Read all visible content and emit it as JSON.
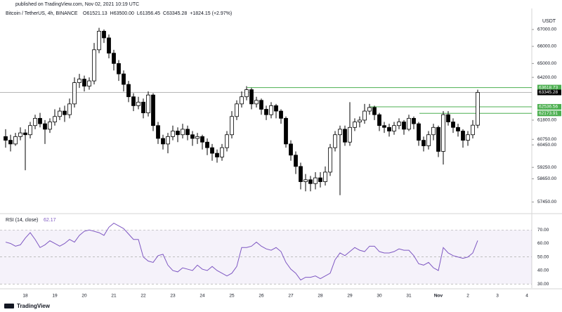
{
  "published": "published on TradingView.com, Nov 02, 2021 10:19 UTC",
  "brand": "TradingView",
  "chart_data": {
    "type": "candlestick",
    "title": "Bitcoin / TetherUS, 4h, BINANCE",
    "ohlc_header": [
      "O61521.13",
      "H63500.00",
      "L61356.45",
      "C63345.28",
      "+1824.15 (+2.97%)"
    ],
    "unit": "USDT",
    "up_color": "#ffffff",
    "down_color": "#000000",
    "log_scale": true,
    "ylim": [
      57000,
      68270
    ],
    "yticks": [
      {
        "value": 67000,
        "label": "67000.00"
      },
      {
        "value": 66000,
        "label": "66000.00"
      },
      {
        "value": 65000,
        "label": "65000.00"
      },
      {
        "value": 64200,
        "label": "64200.00"
      },
      {
        "value": 61800,
        "label": "61800.00"
      },
      {
        "value": 60750,
        "label": "60750.00"
      },
      {
        "value": 60450,
        "label": "60450.00"
      },
      {
        "value": 59250,
        "label": "59250.00"
      },
      {
        "value": 58650,
        "label": "58650.00"
      },
      {
        "value": 57450,
        "label": "57450.00"
      }
    ],
    "xticks": [
      "18",
      "19",
      "20",
      "21",
      "22",
      "23",
      "24",
      "25",
      "26",
      "27",
      "28",
      "29",
      "30",
      "31",
      "Nov",
      "2",
      "3",
      "4"
    ],
    "levels": [
      {
        "value": 63618.73,
        "color": "#4caf50"
      },
      {
        "value": 62536.56,
        "color": "#4caf50"
      },
      {
        "value": 62173.91,
        "color": "#4caf50"
      }
    ],
    "open": [
      60900,
      60700,
      60500,
      60900,
      61100,
      61000,
      61500,
      61900,
      61600,
      61300,
      61700,
      62000,
      62300,
      62100,
      62700,
      63900,
      64100,
      63700,
      64000,
      65800,
      66900,
      66500,
      65600,
      65000,
      64400,
      63800,
      63100,
      62600,
      62800,
      62200,
      63200,
      61500,
      60800,
      60500,
      60900,
      61200,
      61000,
      61300,
      61000,
      60800,
      60900,
      60600,
      60300,
      60000,
      59800,
      60300,
      61000,
      62000,
      62700,
      63100,
      63500,
      62700,
      62900,
      62400,
      62100,
      62600,
      62300,
      61900,
      60500,
      59900,
      59300,
      58500,
      58600,
      58400,
      58700,
      58500,
      59000,
      60300,
      61000,
      61300,
      60600,
      61400,
      61700,
      61800,
      62300,
      62500,
      62100,
      61500,
      61400,
      61200,
      61500,
      61700,
      61300,
      61900,
      61600,
      60700,
      60400,
      61000,
      61400,
      60100,
      62100,
      61700,
      61400,
      61200,
      60700,
      61000,
      61521.13
    ],
    "high": [
      61300,
      61000,
      61100,
      61400,
      61300,
      61700,
      62100,
      62200,
      61800,
      61900,
      62400,
      62500,
      62600,
      63000,
      64200,
      64400,
      64300,
      64200,
      66200,
      67100,
      67000,
      66700,
      65800,
      65200,
      64600,
      64000,
      63300,
      63100,
      63000,
      63400,
      63300,
      61700,
      61000,
      61100,
      61500,
      61400,
      61600,
      61500,
      61200,
      61100,
      61000,
      60800,
      60500,
      60200,
      60500,
      61200,
      62300,
      62900,
      63400,
      63700,
      63600,
      63100,
      63000,
      62600,
      62800,
      62700,
      62400,
      62000,
      60700,
      60100,
      59500,
      58900,
      58800,
      59000,
      59000,
      59300,
      60500,
      61200,
      61500,
      61500,
      62800,
      61900,
      62000,
      62700,
      62700,
      62600,
      62200,
      61700,
      61600,
      61700,
      61900,
      61800,
      62100,
      62000,
      61700,
      60900,
      61200,
      61600,
      61500,
      62300,
      62300,
      61900,
      61600,
      61300,
      61200,
      61800,
      63500
    ],
    "low": [
      60300,
      60100,
      60400,
      60700,
      59100,
      60800,
      61300,
      61400,
      60500,
      61100,
      61500,
      61800,
      61700,
      61900,
      62500,
      63600,
      63400,
      63500,
      63800,
      65600,
      66200,
      65300,
      64600,
      64000,
      63400,
      62800,
      62300,
      62400,
      61900,
      62000,
      61200,
      60500,
      60200,
      60000,
      60700,
      60600,
      60800,
      60700,
      60400,
      60500,
      60200,
      59900,
      59600,
      59500,
      59600,
      60100,
      60800,
      61800,
      62500,
      62900,
      62400,
      62500,
      62100,
      61800,
      61900,
      61900,
      61600,
      60300,
      59600,
      58900,
      58100,
      58000,
      58000,
      58100,
      58200,
      58300,
      58800,
      60100,
      57800,
      60400,
      60400,
      61200,
      61400,
      61600,
      62100,
      61800,
      61200,
      61100,
      60900,
      61000,
      61300,
      61000,
      61200,
      61300,
      60400,
      60100,
      60200,
      60700,
      59800,
      59400,
      61500,
      61100,
      60900,
      60300,
      60400,
      60800,
      61356.45
    ],
    "close": [
      60700,
      60500,
      60900,
      61100,
      61000,
      61500,
      61900,
      61600,
      61300,
      61700,
      62000,
      62300,
      62100,
      62700,
      63900,
      64100,
      63700,
      64000,
      65800,
      66900,
      66500,
      65600,
      65000,
      64400,
      63800,
      63100,
      62600,
      62800,
      62200,
      63200,
      61500,
      60800,
      60500,
      60900,
      61200,
      61000,
      61300,
      61000,
      60800,
      60900,
      60600,
      60300,
      60000,
      59800,
      60300,
      61000,
      62000,
      62700,
      63100,
      63500,
      62700,
      62900,
      62400,
      62100,
      62600,
      62300,
      61900,
      60500,
      59900,
      59300,
      58500,
      58600,
      58400,
      58700,
      58500,
      59000,
      60300,
      61000,
      61300,
      60600,
      61400,
      61700,
      61800,
      62300,
      62500,
      62100,
      61500,
      61400,
      61200,
      61500,
      61700,
      61300,
      61900,
      61600,
      60700,
      60400,
      61000,
      61400,
      60100,
      62100,
      61700,
      61400,
      61200,
      60700,
      61000,
      61521.13,
      63345.28
    ]
  },
  "rsi": {
    "title": "RSI (14, close)",
    "color": "#7e57c2",
    "ylim": [
      27,
      80
    ],
    "band": [
      30,
      70
    ],
    "yticks": [
      {
        "value": 70,
        "label": "70.00"
      },
      {
        "value": 60,
        "label": "60.00"
      },
      {
        "value": 50,
        "label": "50.00"
      },
      {
        "value": 40,
        "label": "40.00"
      },
      {
        "value": 30,
        "label": "30.00"
      }
    ],
    "values": [
      61,
      60,
      58,
      59,
      64,
      68,
      63,
      57,
      59,
      62,
      60,
      58,
      60,
      63,
      61,
      66,
      69,
      70,
      69,
      68,
      66,
      72,
      75,
      73,
      71,
      67,
      63,
      63,
      50,
      47,
      46,
      51,
      52,
      44,
      40,
      39,
      42,
      41,
      40,
      44,
      41,
      40,
      43,
      40,
      38,
      36,
      38,
      43,
      57,
      57,
      58,
      61,
      58,
      56,
      55,
      57,
      54,
      46,
      41,
      38,
      33,
      35,
      35,
      36,
      34,
      36,
      38,
      48,
      53,
      51,
      54,
      57,
      55,
      54,
      58,
      58,
      54,
      53,
      53,
      54,
      56,
      55,
      55,
      51,
      45,
      44,
      46,
      42,
      40,
      57,
      53,
      51,
      50,
      49,
      50,
      53,
      62.17
    ]
  }
}
